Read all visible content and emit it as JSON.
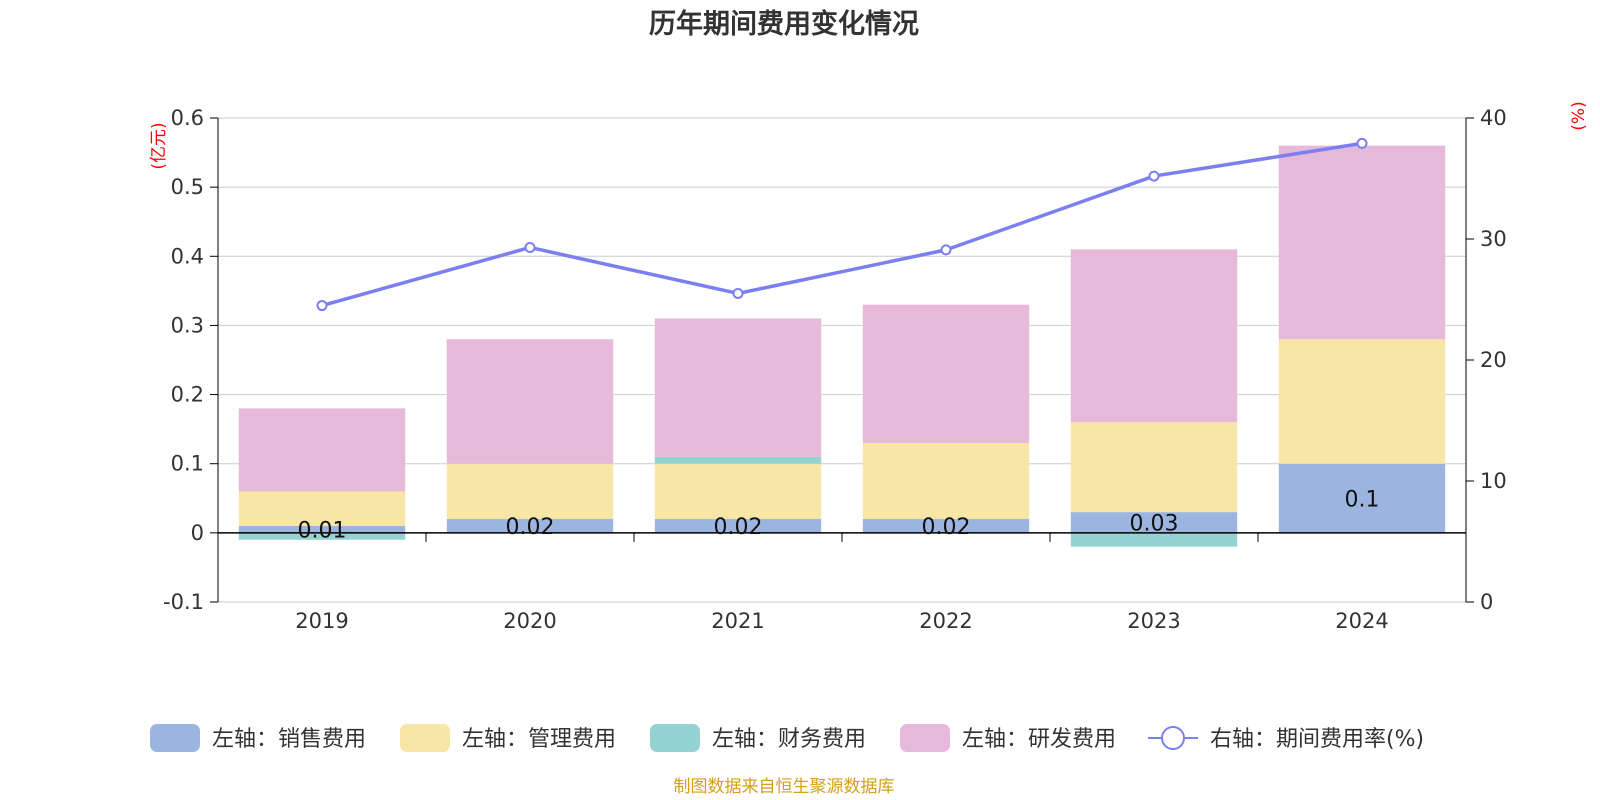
{
  "chart_data": {
    "type": "bar",
    "title": "历年期间费用变化情况",
    "categories": [
      "2019",
      "2020",
      "2021",
      "2022",
      "2023",
      "2024"
    ],
    "left_axis": {
      "unit": "(亿元)",
      "ylim": [
        -0.1,
        0.6
      ],
      "ticks": [
        "-0.1",
        "0",
        "0.1",
        "0.2",
        "0.3",
        "0.4",
        "0.5",
        "0.6"
      ]
    },
    "right_axis": {
      "unit": "(%)",
      "ylim": [
        0,
        40
      ],
      "ticks": [
        "0",
        "10",
        "20",
        "30",
        "40"
      ]
    },
    "series": [
      {
        "name": "左轴：销售费用",
        "type": "bar",
        "color": "#9bb5e0",
        "values": [
          0.01,
          0.02,
          0.02,
          0.02,
          0.03,
          0.1
        ],
        "labels": [
          "0.01",
          "0.02",
          "0.02",
          "0.02",
          "0.03",
          "0.1"
        ]
      },
      {
        "name": "左轴：管理费用",
        "type": "bar",
        "color": "#f8e6a6",
        "values": [
          0.05,
          0.08,
          0.08,
          0.11,
          0.13,
          0.18
        ]
      },
      {
        "name": "左轴：财务费用",
        "type": "bar",
        "color": "#95d3d3",
        "values": [
          -0.01,
          0.0,
          0.01,
          0.0,
          -0.02,
          0.0
        ]
      },
      {
        "name": "左轴：研发费用",
        "type": "bar",
        "color": "#e6b8d9",
        "values": [
          0.12,
          0.18,
          0.2,
          0.2,
          0.25,
          0.28
        ]
      },
      {
        "name": "右轴：期间费用率(%)",
        "type": "line",
        "axis": "right",
        "color": "#7b7ff0",
        "values": [
          24.5,
          29.3,
          25.5,
          29.1,
          35.2,
          37.9
        ]
      }
    ],
    "grid": true,
    "legend_position": "bottom"
  },
  "source_note": "制图数据来自恒生聚源数据库",
  "colors": {
    "title": "#333333",
    "unit": "#ff0000",
    "source": "#d4a017",
    "axis": "#000000",
    "grid": "#cccccc"
  }
}
